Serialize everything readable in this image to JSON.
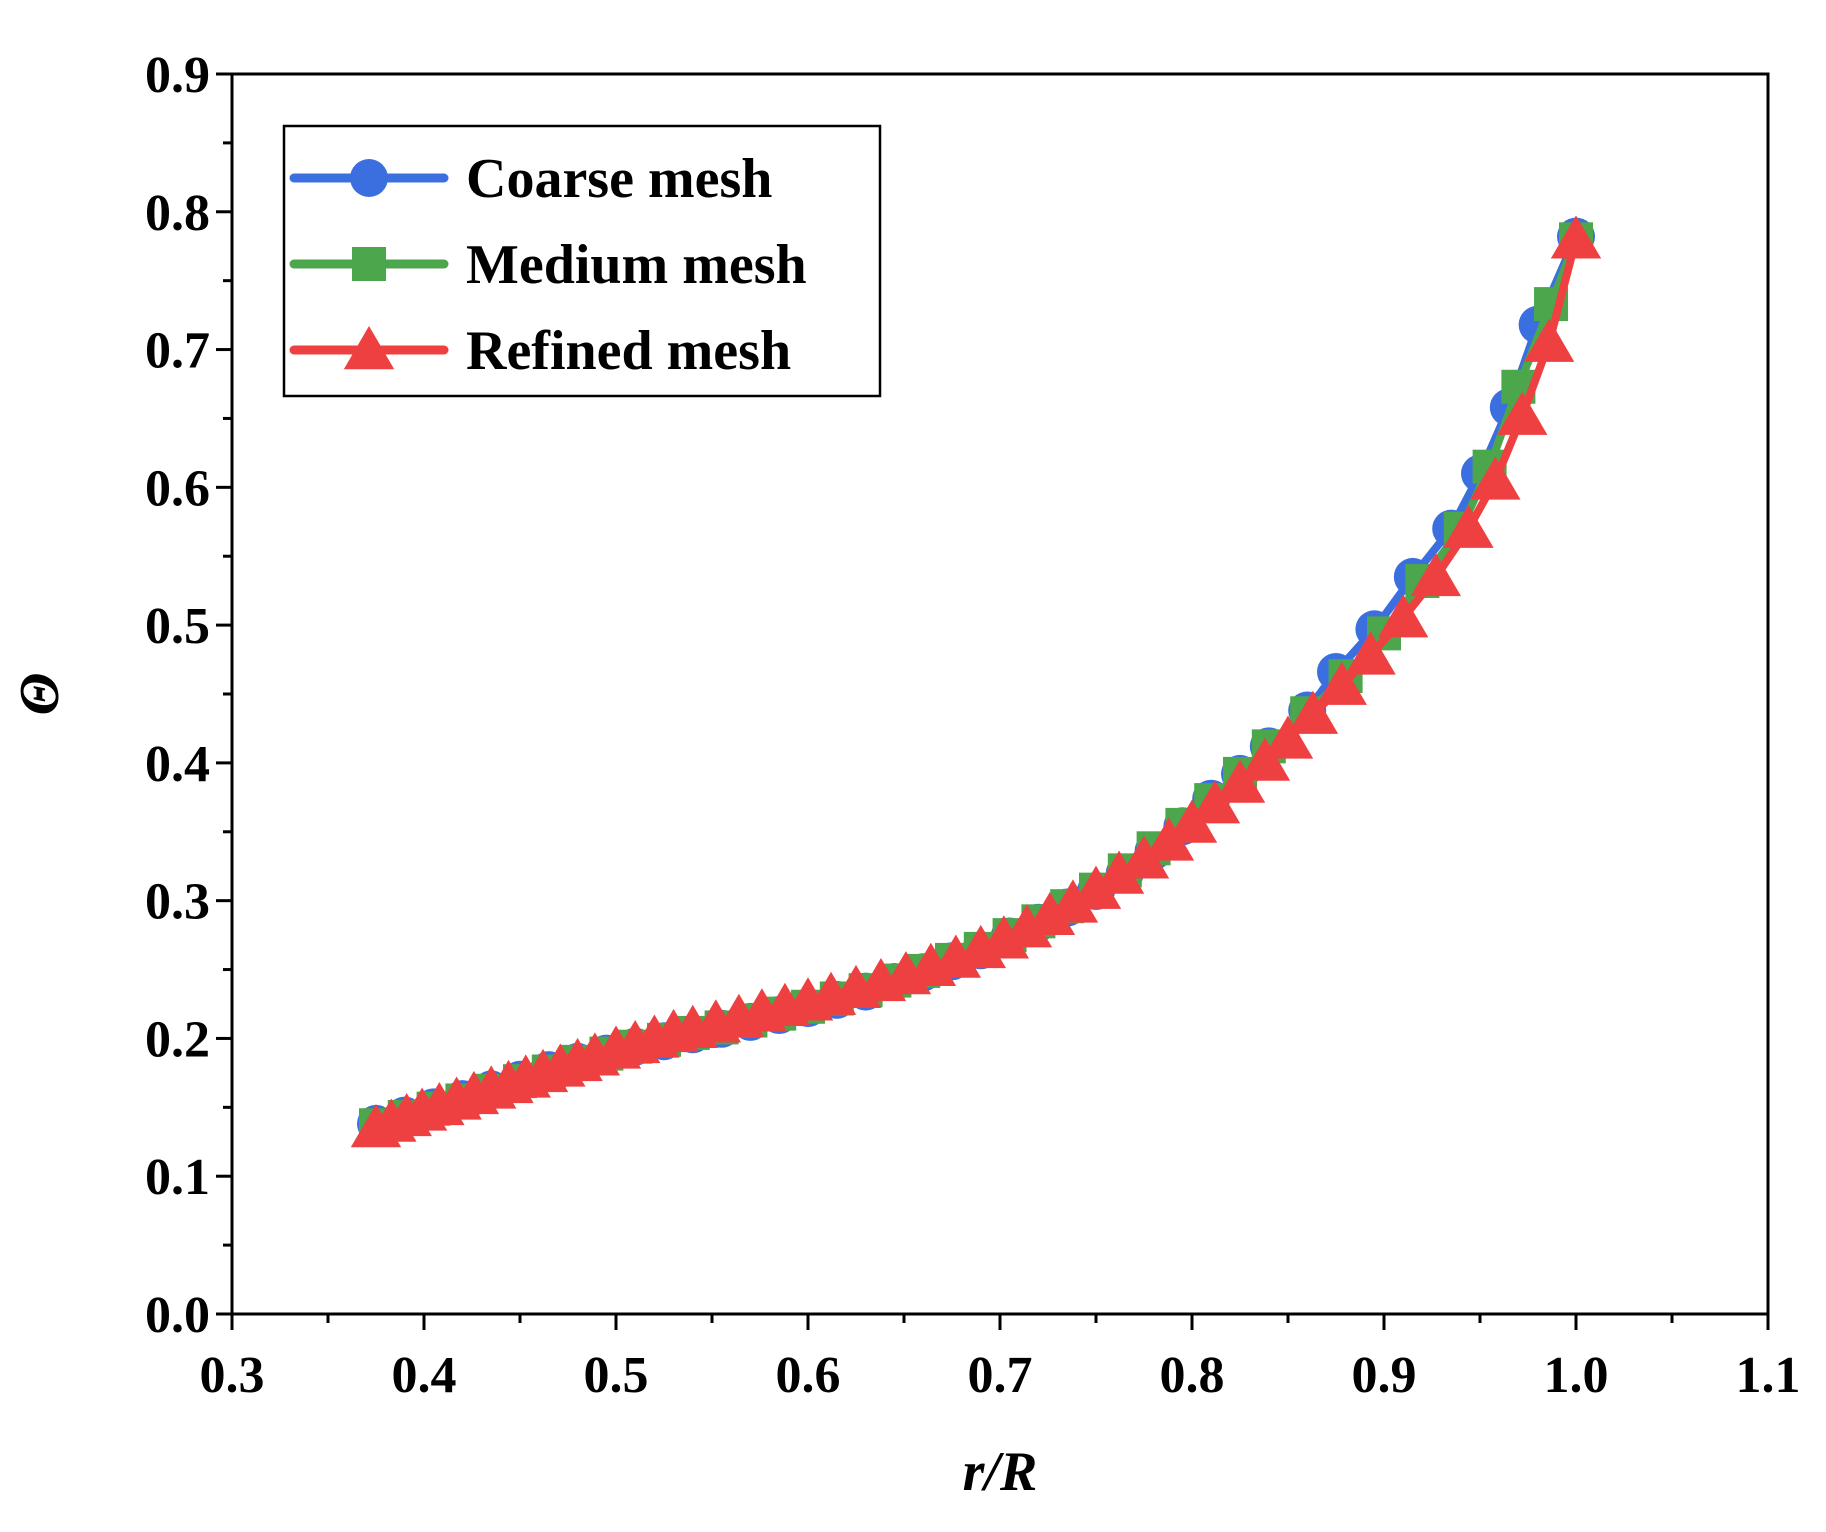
{
  "chart_data": {
    "type": "line",
    "title": "",
    "xlabel": "r/R",
    "ylabel": "Θ",
    "xlim": [
      0.3,
      1.1
    ],
    "ylim": [
      0.0,
      0.9
    ],
    "xticks": [
      "0.3",
      "0.4",
      "0.5",
      "0.6",
      "0.7",
      "0.8",
      "0.9",
      "1.0",
      "1.1"
    ],
    "yticks": [
      "0.0",
      "0.1",
      "0.2",
      "0.3",
      "0.4",
      "0.5",
      "0.6",
      "0.7",
      "0.8",
      "0.9"
    ],
    "legend_position": "top-left",
    "series": [
      {
        "name": "Coarse mesh",
        "color": "#3B6FE0",
        "marker": "circle",
        "x": [
          0.375,
          0.39,
          0.405,
          0.42,
          0.435,
          0.45,
          0.465,
          0.48,
          0.495,
          0.51,
          0.525,
          0.54,
          0.555,
          0.57,
          0.585,
          0.6,
          0.615,
          0.63,
          0.645,
          0.66,
          0.675,
          0.69,
          0.705,
          0.72,
          0.735,
          0.75,
          0.765,
          0.78,
          0.795,
          0.81,
          0.825,
          0.84,
          0.86,
          0.875,
          0.895,
          0.915,
          0.935,
          0.95,
          0.965,
          0.98,
          1.0
        ],
        "y": [
          0.138,
          0.144,
          0.15,
          0.156,
          0.163,
          0.17,
          0.177,
          0.183,
          0.189,
          0.194,
          0.198,
          0.203,
          0.207,
          0.212,
          0.217,
          0.222,
          0.228,
          0.234,
          0.241,
          0.248,
          0.256,
          0.264,
          0.274,
          0.284,
          0.295,
          0.307,
          0.32,
          0.336,
          0.354,
          0.374,
          0.392,
          0.412,
          0.438,
          0.466,
          0.497,
          0.535,
          0.57,
          0.61,
          0.658,
          0.718,
          0.782
        ]
      },
      {
        "name": "Medium mesh",
        "color": "#4CA64C",
        "marker": "square",
        "x": [
          0.375,
          0.39,
          0.405,
          0.42,
          0.435,
          0.45,
          0.465,
          0.48,
          0.495,
          0.51,
          0.525,
          0.54,
          0.555,
          0.57,
          0.585,
          0.6,
          0.615,
          0.63,
          0.645,
          0.66,
          0.675,
          0.69,
          0.705,
          0.72,
          0.735,
          0.75,
          0.765,
          0.78,
          0.795,
          0.81,
          0.825,
          0.84,
          0.86,
          0.88,
          0.9,
          0.92,
          0.94,
          0.955,
          0.97,
          0.987,
          1.0
        ],
        "y": [
          0.137,
          0.143,
          0.149,
          0.155,
          0.162,
          0.169,
          0.176,
          0.183,
          0.189,
          0.194,
          0.199,
          0.204,
          0.208,
          0.213,
          0.218,
          0.223,
          0.229,
          0.235,
          0.242,
          0.249,
          0.257,
          0.265,
          0.275,
          0.285,
          0.296,
          0.308,
          0.322,
          0.338,
          0.355,
          0.373,
          0.392,
          0.412,
          0.436,
          0.463,
          0.494,
          0.532,
          0.57,
          0.615,
          0.673,
          0.733,
          0.78
        ]
      },
      {
        "name": "Refined mesh",
        "color": "#EE4040",
        "marker": "triangle",
        "x": [
          0.375,
          0.383,
          0.391,
          0.399,
          0.408,
          0.417,
          0.426,
          0.435,
          0.444,
          0.453,
          0.462,
          0.471,
          0.48,
          0.489,
          0.5,
          0.51,
          0.52,
          0.53,
          0.54,
          0.552,
          0.564,
          0.576,
          0.588,
          0.6,
          0.612,
          0.625,
          0.638,
          0.651,
          0.664,
          0.677,
          0.69,
          0.702,
          0.714,
          0.726,
          0.738,
          0.75,
          0.762,
          0.775,
          0.788,
          0.8,
          0.812,
          0.825,
          0.838,
          0.85,
          0.863,
          0.878,
          0.893,
          0.91,
          0.927,
          0.944,
          0.958,
          0.972,
          0.986,
          1.0
        ],
        "y": [
          0.135,
          0.139,
          0.143,
          0.147,
          0.151,
          0.155,
          0.159,
          0.163,
          0.167,
          0.171,
          0.175,
          0.179,
          0.183,
          0.187,
          0.192,
          0.196,
          0.2,
          0.204,
          0.207,
          0.211,
          0.215,
          0.219,
          0.223,
          0.227,
          0.231,
          0.236,
          0.241,
          0.246,
          0.252,
          0.258,
          0.265,
          0.272,
          0.28,
          0.289,
          0.298,
          0.308,
          0.319,
          0.33,
          0.343,
          0.356,
          0.37,
          0.385,
          0.401,
          0.417,
          0.435,
          0.456,
          0.478,
          0.505,
          0.535,
          0.57,
          0.605,
          0.652,
          0.705,
          0.78
        ]
      }
    ]
  }
}
